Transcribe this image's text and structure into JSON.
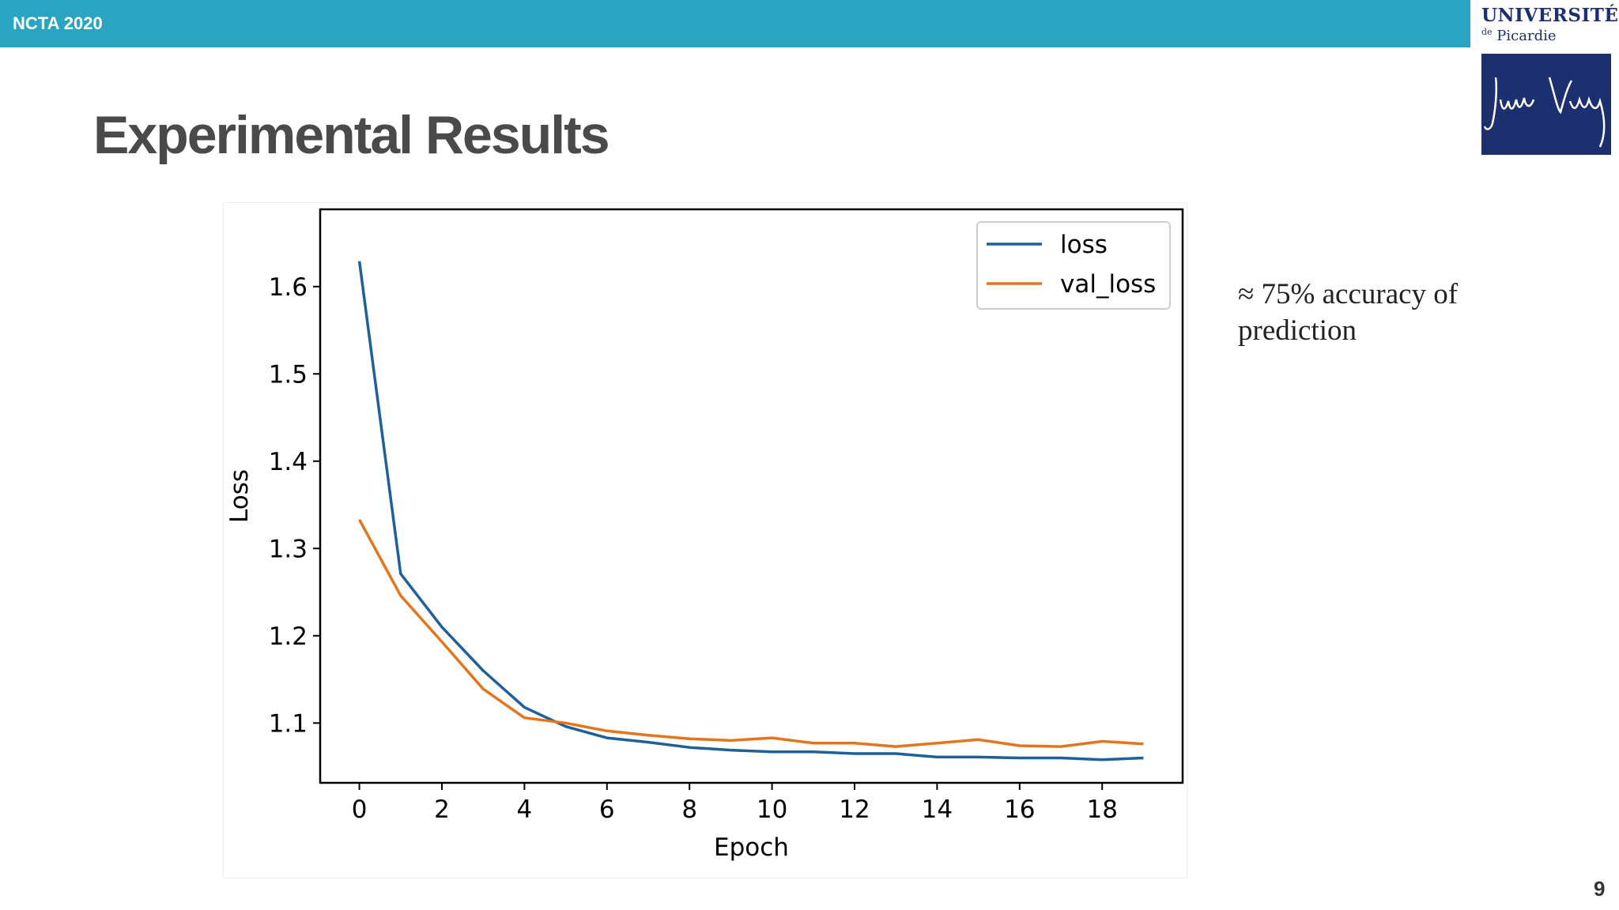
{
  "header": {
    "conference": "NCTA 2020"
  },
  "logo": {
    "line1": "UNIVERSITÉ",
    "de": "de",
    "line2": "Picardie",
    "script": "Jules Verne"
  },
  "slide": {
    "title": "Experimental Results",
    "note": "≈ 75% accuracy of prediction",
    "page_number": "9"
  },
  "colors": {
    "header_bar": "#2ba4c2",
    "logo_blue": "#1c2f6e",
    "loss": "#1f5f9a",
    "val_loss": "#e4751d"
  },
  "chart_data": {
    "type": "line",
    "xlabel": "Epoch",
    "ylabel": "Loss",
    "xlim": [
      -0.95,
      19.95
    ],
    "ylim": [
      1.0315,
      1.6885
    ],
    "xticks": [
      "0",
      "2",
      "4",
      "6",
      "8",
      "10",
      "12",
      "14",
      "16",
      "18"
    ],
    "yticks": [
      "1.1",
      "1.2",
      "1.3",
      "1.4",
      "1.5",
      "1.6"
    ],
    "x": [
      0,
      1,
      2,
      3,
      4,
      5,
      6,
      7,
      8,
      9,
      10,
      11,
      12,
      13,
      14,
      15,
      16,
      17,
      18,
      19
    ],
    "legend_position": "top-right",
    "series": [
      {
        "name": "loss",
        "color": "#1f5f9a",
        "values": [
          1.629,
          1.271,
          1.21,
          1.16,
          1.118,
          1.096,
          1.083,
          1.078,
          1.072,
          1.069,
          1.067,
          1.067,
          1.065,
          1.065,
          1.061,
          1.061,
          1.06,
          1.06,
          1.058,
          1.06
        ]
      },
      {
        "name": "val_loss",
        "color": "#e4751d",
        "values": [
          1.333,
          1.246,
          1.193,
          1.139,
          1.106,
          1.1,
          1.091,
          1.086,
          1.082,
          1.08,
          1.083,
          1.077,
          1.077,
          1.073,
          1.077,
          1.081,
          1.074,
          1.073,
          1.079,
          1.076
        ]
      }
    ]
  }
}
